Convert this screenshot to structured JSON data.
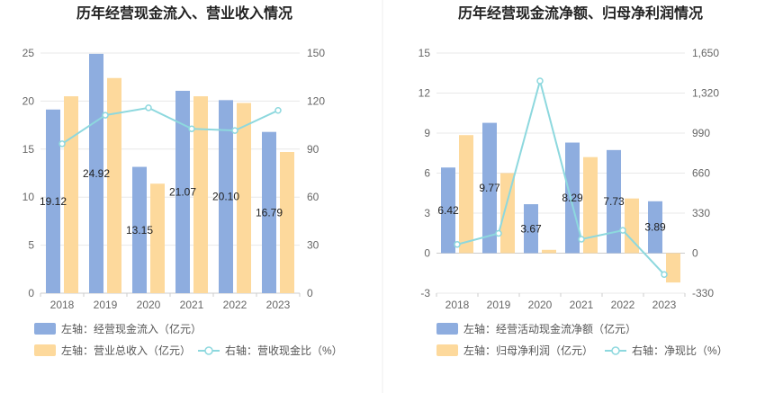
{
  "chart_data": [
    {
      "type": "bar",
      "title": "历年经营现金流入、营业收入情况",
      "categories": [
        "2018",
        "2019",
        "2020",
        "2021",
        "2022",
        "2023"
      ],
      "y_left_ticks": [
        "0",
        "5",
        "10",
        "15",
        "20",
        "25"
      ],
      "y_right_ticks": [
        "0",
        "30",
        "60",
        "90",
        "120",
        "150"
      ],
      "ylim_left": [
        0,
        25
      ],
      "ylim_right": [
        0,
        150
      ],
      "series": [
        {
          "name": "左轴：经营现金流入（亿元）",
          "axis": "left",
          "type": "bar",
          "color": "#8eaddf",
          "values": [
            19.12,
            24.92,
            13.15,
            21.07,
            20.1,
            16.79
          ],
          "labels": [
            "19.12",
            "24.92",
            "13.15",
            "21.07",
            "20.10",
            "16.79"
          ]
        },
        {
          "name": "左轴：营业总收入（亿元）",
          "axis": "left",
          "type": "bar",
          "color": "#fdd99c",
          "values": [
            20.5,
            22.4,
            11.4,
            20.5,
            19.8,
            14.7
          ]
        },
        {
          "name": "右轴：营收现金比（%）",
          "axis": "right",
          "type": "line",
          "color": "#8dd8de",
          "values": [
            93.3,
            111.2,
            115.8,
            102.7,
            101.6,
            114.2
          ]
        }
      ],
      "grid": true,
      "legend": "bottom"
    },
    {
      "type": "bar",
      "title": "历年经营现金流净额、归母净利润情况",
      "categories": [
        "2018",
        "2019",
        "2020",
        "2021",
        "2022",
        "2023"
      ],
      "y_left_ticks": [
        "-3",
        "0",
        "3",
        "6",
        "9",
        "12",
        "15"
      ],
      "y_right_ticks": [
        "-330",
        "0",
        "330",
        "660",
        "990",
        "1,320",
        "1,650"
      ],
      "ylim_left": [
        -3,
        15
      ],
      "ylim_right": [
        -330,
        1650
      ],
      "series": [
        {
          "name": "左轴：经营活动现金流净额（亿元）",
          "axis": "left",
          "type": "bar",
          "color": "#8eaddf",
          "values": [
            6.42,
            9.77,
            3.67,
            8.29,
            7.73,
            3.89
          ],
          "labels": [
            "6.42",
            "9.77",
            "3.67",
            "8.29",
            "7.73",
            "3.89"
          ]
        },
        {
          "name": "左轴：归母净利润（亿元）",
          "axis": "left",
          "type": "bar",
          "color": "#fdd99c",
          "values": [
            8.85,
            6.0,
            0.25,
            7.2,
            4.1,
            -2.2
          ]
        },
        {
          "name": "右轴：净现比（%）",
          "axis": "right",
          "type": "line",
          "color": "#8dd8de",
          "values": [
            72,
            163,
            1420,
            115,
            188,
            -176
          ]
        }
      ],
      "grid": true,
      "legend": "bottom"
    }
  ]
}
